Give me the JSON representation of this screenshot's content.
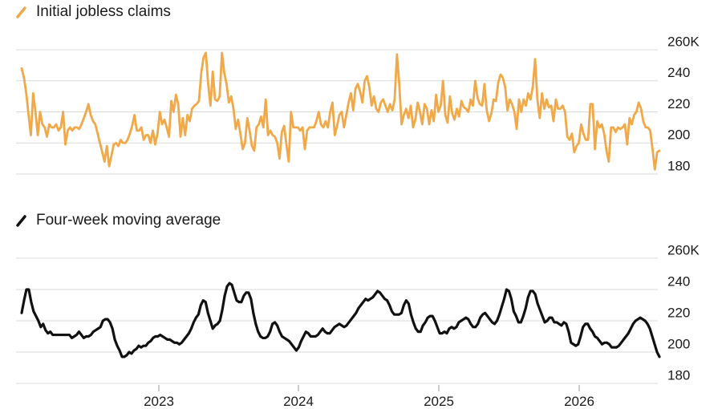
{
  "chart_data": [
    {
      "type": "line",
      "title": "",
      "xlabel": "",
      "ylabel": "",
      "ylim": [
        180,
        260
      ],
      "yticks": [
        "260K",
        "240",
        "220",
        "200",
        "180"
      ],
      "legend": "top-left",
      "grid": true,
      "series": [
        {
          "name": "Initial jobless claims",
          "color": "#f0a848",
          "values": [
            248,
            242,
            232,
            218,
            205,
            232,
            220,
            205,
            220,
            212,
            210,
            204,
            212,
            210,
            210,
            212,
            208,
            210,
            220,
            199,
            208,
            210,
            208,
            210,
            210,
            209,
            212,
            216,
            220,
            225,
            218,
            214,
            212,
            206,
            200,
            194,
            188,
            198,
            185,
            192,
            199,
            200,
            198,
            202,
            200,
            200,
            202,
            206,
            211,
            218,
            208,
            208,
            210,
            202,
            205,
            205,
            200,
            208,
            199,
            206,
            220,
            212,
            215,
            210,
            204,
            227,
            220,
            231,
            225,
            204,
            216,
            205,
            218,
            214,
            222,
            224,
            225,
            227,
            245,
            255,
            258,
            238,
            224,
            246,
            228,
            227,
            230,
            258,
            245,
            238,
            226,
            230,
            222,
            209,
            215,
            206,
            196,
            200,
            216,
            208,
            198,
            195,
            210,
            212,
            217,
            210,
            228,
            205,
            208,
            205,
            204,
            200,
            190,
            207,
            211,
            199,
            188,
            220,
            210,
            210,
            210,
            208,
            210,
            196,
            208,
            210,
            210,
            210,
            214,
            220,
            212,
            210,
            214,
            210,
            220,
            226,
            205,
            211,
            218,
            220,
            210,
            218,
            226,
            232,
            221,
            235,
            238,
            233,
            226,
            240,
            243,
            236,
            224,
            230,
            222,
            220,
            226,
            228,
            224,
            220,
            225,
            221,
            228,
            257,
            238,
            212,
            218,
            222,
            216,
            224,
            210,
            215,
            226,
            220,
            212,
            225,
            222,
            212,
            221,
            214,
            231,
            220,
            224,
            240,
            218,
            213,
            230,
            219,
            215,
            222,
            217,
            227,
            223,
            222,
            220,
            228,
            224,
            240,
            229,
            225,
            224,
            238,
            221,
            214,
            219,
            228,
            227,
            239,
            244,
            242,
            236,
            221,
            228,
            225,
            220,
            209,
            228,
            220,
            228,
            224,
            232,
            228,
            236,
            254,
            228,
            216,
            232,
            222,
            228,
            223,
            224,
            214,
            228,
            222,
            222,
            224,
            220,
            204,
            202,
            206,
            194,
            198,
            200,
            212,
            206,
            202,
            202,
            225,
            225,
            196,
            214,
            210,
            212,
            206,
            195,
            188,
            210,
            210,
            207,
            210,
            209,
            210,
            212,
            199,
            216,
            212,
            218,
            220,
            226,
            222,
            214,
            210,
            210,
            208,
            196,
            183,
            194,
            195
          ]
        }
      ],
      "x_tick_labels": [
        "2023",
        "2024",
        "2025",
        "2026"
      ]
    },
    {
      "type": "line",
      "title": "",
      "xlabel": "",
      "ylabel": "",
      "ylim": [
        180,
        260
      ],
      "yticks": [
        "260K",
        "240",
        "220",
        "200",
        "180"
      ],
      "legend": "top-left",
      "grid": true,
      "series": [
        {
          "name": "Four-week moving average",
          "color": "#111111",
          "values": [
            225,
            233,
            240,
            240,
            232,
            226,
            223,
            220,
            216,
            218,
            214,
            212,
            213,
            211,
            211,
            211,
            211,
            211,
            211,
            211,
            211,
            209,
            210,
            211,
            213,
            211,
            209,
            210,
            210,
            211,
            213,
            214,
            215,
            216,
            220,
            221,
            221,
            219,
            215,
            208,
            204,
            201,
            197,
            197,
            198,
            200,
            199,
            201,
            202,
            204,
            203,
            204,
            204,
            206,
            207,
            209,
            210,
            210,
            211,
            210,
            209,
            208,
            208,
            207,
            206,
            206,
            205,
            206,
            208,
            210,
            212,
            215,
            219,
            222,
            224,
            230,
            233,
            232,
            225,
            220,
            215,
            217,
            218,
            220,
            227,
            236,
            242,
            244,
            243,
            238,
            233,
            232,
            232,
            236,
            238,
            238,
            234,
            225,
            218,
            213,
            210,
            209,
            209,
            210,
            213,
            218,
            219,
            217,
            213,
            210,
            209,
            208,
            207,
            205,
            203,
            201,
            203,
            207,
            210,
            213,
            212,
            210,
            210,
            210,
            211,
            213,
            215,
            213,
            212,
            212,
            214,
            216,
            217,
            218,
            217,
            216,
            217,
            219,
            221,
            223,
            225,
            228,
            230,
            232,
            234,
            233,
            234,
            235,
            237,
            239,
            238,
            236,
            234,
            233,
            230,
            226,
            224,
            224,
            224,
            225,
            230,
            233,
            231,
            224,
            219,
            215,
            213,
            213,
            217,
            219,
            222,
            223,
            223,
            220,
            216,
            212,
            212,
            213,
            212,
            215,
            216,
            215,
            216,
            219,
            220,
            221,
            222,
            221,
            218,
            216,
            216,
            218,
            222,
            224,
            225,
            223,
            221,
            219,
            218,
            220,
            224,
            229,
            234,
            240,
            239,
            234,
            226,
            223,
            219,
            219,
            223,
            228,
            235,
            239,
            239,
            237,
            231,
            227,
            223,
            219,
            220,
            222,
            222,
            219,
            219,
            218,
            217,
            219,
            218,
            213,
            206,
            205,
            204,
            205,
            210,
            216,
            218,
            218,
            215,
            213,
            210,
            209,
            207,
            205,
            206,
            206,
            205,
            203,
            203,
            203,
            204,
            206,
            208,
            210,
            212,
            215,
            218,
            220,
            221,
            222,
            221,
            220,
            218,
            215,
            210,
            205,
            200,
            197
          ]
        }
      ],
      "x_tick_labels": [
        "2023",
        "2024",
        "2025",
        "2026"
      ]
    }
  ]
}
